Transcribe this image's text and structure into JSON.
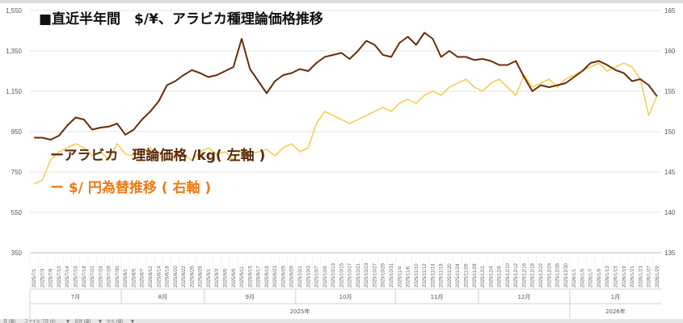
{
  "colors": {
    "arabica": "#6b2c08",
    "fx": "#f3cf58",
    "legend_fx_text": "#f07a10",
    "grid": "#e6e6e6"
  },
  "chart_data": {
    "type": "line",
    "title": "■直近半年間　$/¥、アラビカ種理論価格推移",
    "xlabel": "",
    "ylabel": "",
    "grid": true,
    "legend_placement": "left-middle",
    "y_left": {
      "min": 350,
      "max": 1550,
      "ticks": [
        "1,550",
        "1,350",
        "1,150",
        "950",
        "750",
        "550",
        "350"
      ]
    },
    "y_right": {
      "min": 135,
      "max": 165,
      "ticks": [
        "165",
        "160",
        "155",
        "150",
        "145",
        "140",
        "135"
      ]
    },
    "x": [
      "2025/7/1",
      "2025/7/3",
      "2025/7/8",
      "2025/7/10",
      "2025/7/14",
      "2025/7/16",
      "2025/7/18",
      "2025/7/22",
      "2025/7/24",
      "2025/7/28",
      "2025/7/30",
      "2025/8/1",
      "2025/8/5",
      "2025/8/7",
      "2025/8/12",
      "2025/8/14",
      "2025/8/18",
      "2025/8/20",
      "2025/8/22",
      "2025/8/26",
      "2025/8/28",
      "2025/9/1",
      "2025/9/3",
      "2025/9/5",
      "2025/9/9",
      "2025/9/11",
      "2025/9/15",
      "2025/9/17",
      "2025/9/19",
      "2025/9/23",
      "2025/9/25",
      "2025/9/29",
      "2025/10/1",
      "2025/10/3",
      "2025/10/7",
      "2025/10/9",
      "2025/10/13",
      "2025/10/15",
      "2025/10/17",
      "2025/10/21",
      "2025/10/23",
      "2025/10/27",
      "2025/10/29",
      "2025/10/31",
      "2025/11/4",
      "2025/11/6",
      "2025/11/10",
      "2025/11/12",
      "2025/11/14",
      "2025/11/18",
      "2025/11/20",
      "2025/11/24",
      "2025/11/26",
      "2025/11/28",
      "2025/12/2",
      "2025/12/4",
      "2025/12/8",
      "2025/12/10",
      "2025/12/12",
      "2025/12/16",
      "2025/12/18",
      "2025/12/22",
      "2025/12/24",
      "2025/12/26",
      "2025/12/30",
      "2026/1/1",
      "2026/1/5",
      "2026/1/7",
      "2026/1/9",
      "2026/1/13",
      "2026/1/15",
      "2026/1/19",
      "2026/1/21",
      "2026/1/23",
      "2026/1/27",
      "2026/1/29"
    ],
    "months": [
      {
        "label": "7月",
        "start": 0,
        "end": 10
      },
      {
        "label": "8月",
        "start": 11,
        "end": 20
      },
      {
        "label": "9月",
        "start": 21,
        "end": 31
      },
      {
        "label": "10月",
        "start": 32,
        "end": 43
      },
      {
        "label": "11月",
        "start": 44,
        "end": 53
      },
      {
        "label": "12月",
        "start": 54,
        "end": 64
      },
      {
        "label": "1月",
        "start": 65,
        "end": 75
      }
    ],
    "years": [
      {
        "label": "2025年",
        "start": 0,
        "end": 64
      },
      {
        "label": "2026年",
        "start": 65,
        "end": 75
      }
    ],
    "series": [
      {
        "name": "ーアラビカ　理論価格 /kg( 左軸 )",
        "axis": "left",
        "values": [
          920,
          920,
          910,
          930,
          980,
          1020,
          1010,
          960,
          970,
          975,
          990,
          935,
          960,
          1010,
          1050,
          1100,
          1180,
          1200,
          1230,
          1255,
          1240,
          1220,
          1230,
          1250,
          1270,
          1410,
          1260,
          1200,
          1140,
          1200,
          1230,
          1240,
          1260,
          1250,
          1290,
          1320,
          1330,
          1340,
          1310,
          1350,
          1400,
          1380,
          1330,
          1320,
          1390,
          1420,
          1380,
          1440,
          1410,
          1320,
          1350,
          1320,
          1320,
          1305,
          1310,
          1300,
          1280,
          1280,
          1300,
          1220,
          1150,
          1180,
          1170,
          1180,
          1190,
          1220,
          1250,
          1290,
          1300,
          1280,
          1255,
          1240,
          1200,
          1210,
          1180,
          1125
        ]
      },
      {
        "name": "ー $/ 円為替推移 ( 右軸 )",
        "axis": "right",
        "values": [
          143.5,
          144.0,
          146.5,
          147.5,
          148.0,
          148.5,
          148.0,
          147.0,
          147.5,
          146.5,
          148.5,
          147.2,
          147.0,
          147.5,
          148.0,
          147.0,
          146.5,
          147.2,
          147.0,
          146.5,
          147.5,
          148.0,
          147.2,
          147.5,
          146.5,
          147.8,
          147.2,
          147.5,
          147.8,
          147.0,
          148.0,
          148.5,
          147.5,
          148.0,
          151.0,
          152.5,
          152.0,
          151.5,
          151.0,
          151.5,
          152.0,
          152.5,
          153.0,
          152.5,
          153.5,
          154.0,
          153.5,
          154.5,
          155.0,
          154.5,
          155.5,
          156.0,
          156.5,
          155.5,
          155.0,
          156.0,
          156.5,
          155.5,
          154.5,
          157.0,
          155.5,
          156.0,
          156.5,
          155.5,
          156.5,
          157.0,
          157.5,
          158.0,
          158.5,
          157.5,
          158.0,
          158.5,
          158.0,
          156.5,
          152.0,
          154.5
        ]
      }
    ]
  },
  "footer": {
    "items": [
      "月 (値)",
      "ファイル",
      "7月 (6)",
      "▼",
      "日付 (値)",
      "▼",
      "セル (値)",
      "▼"
    ]
  }
}
